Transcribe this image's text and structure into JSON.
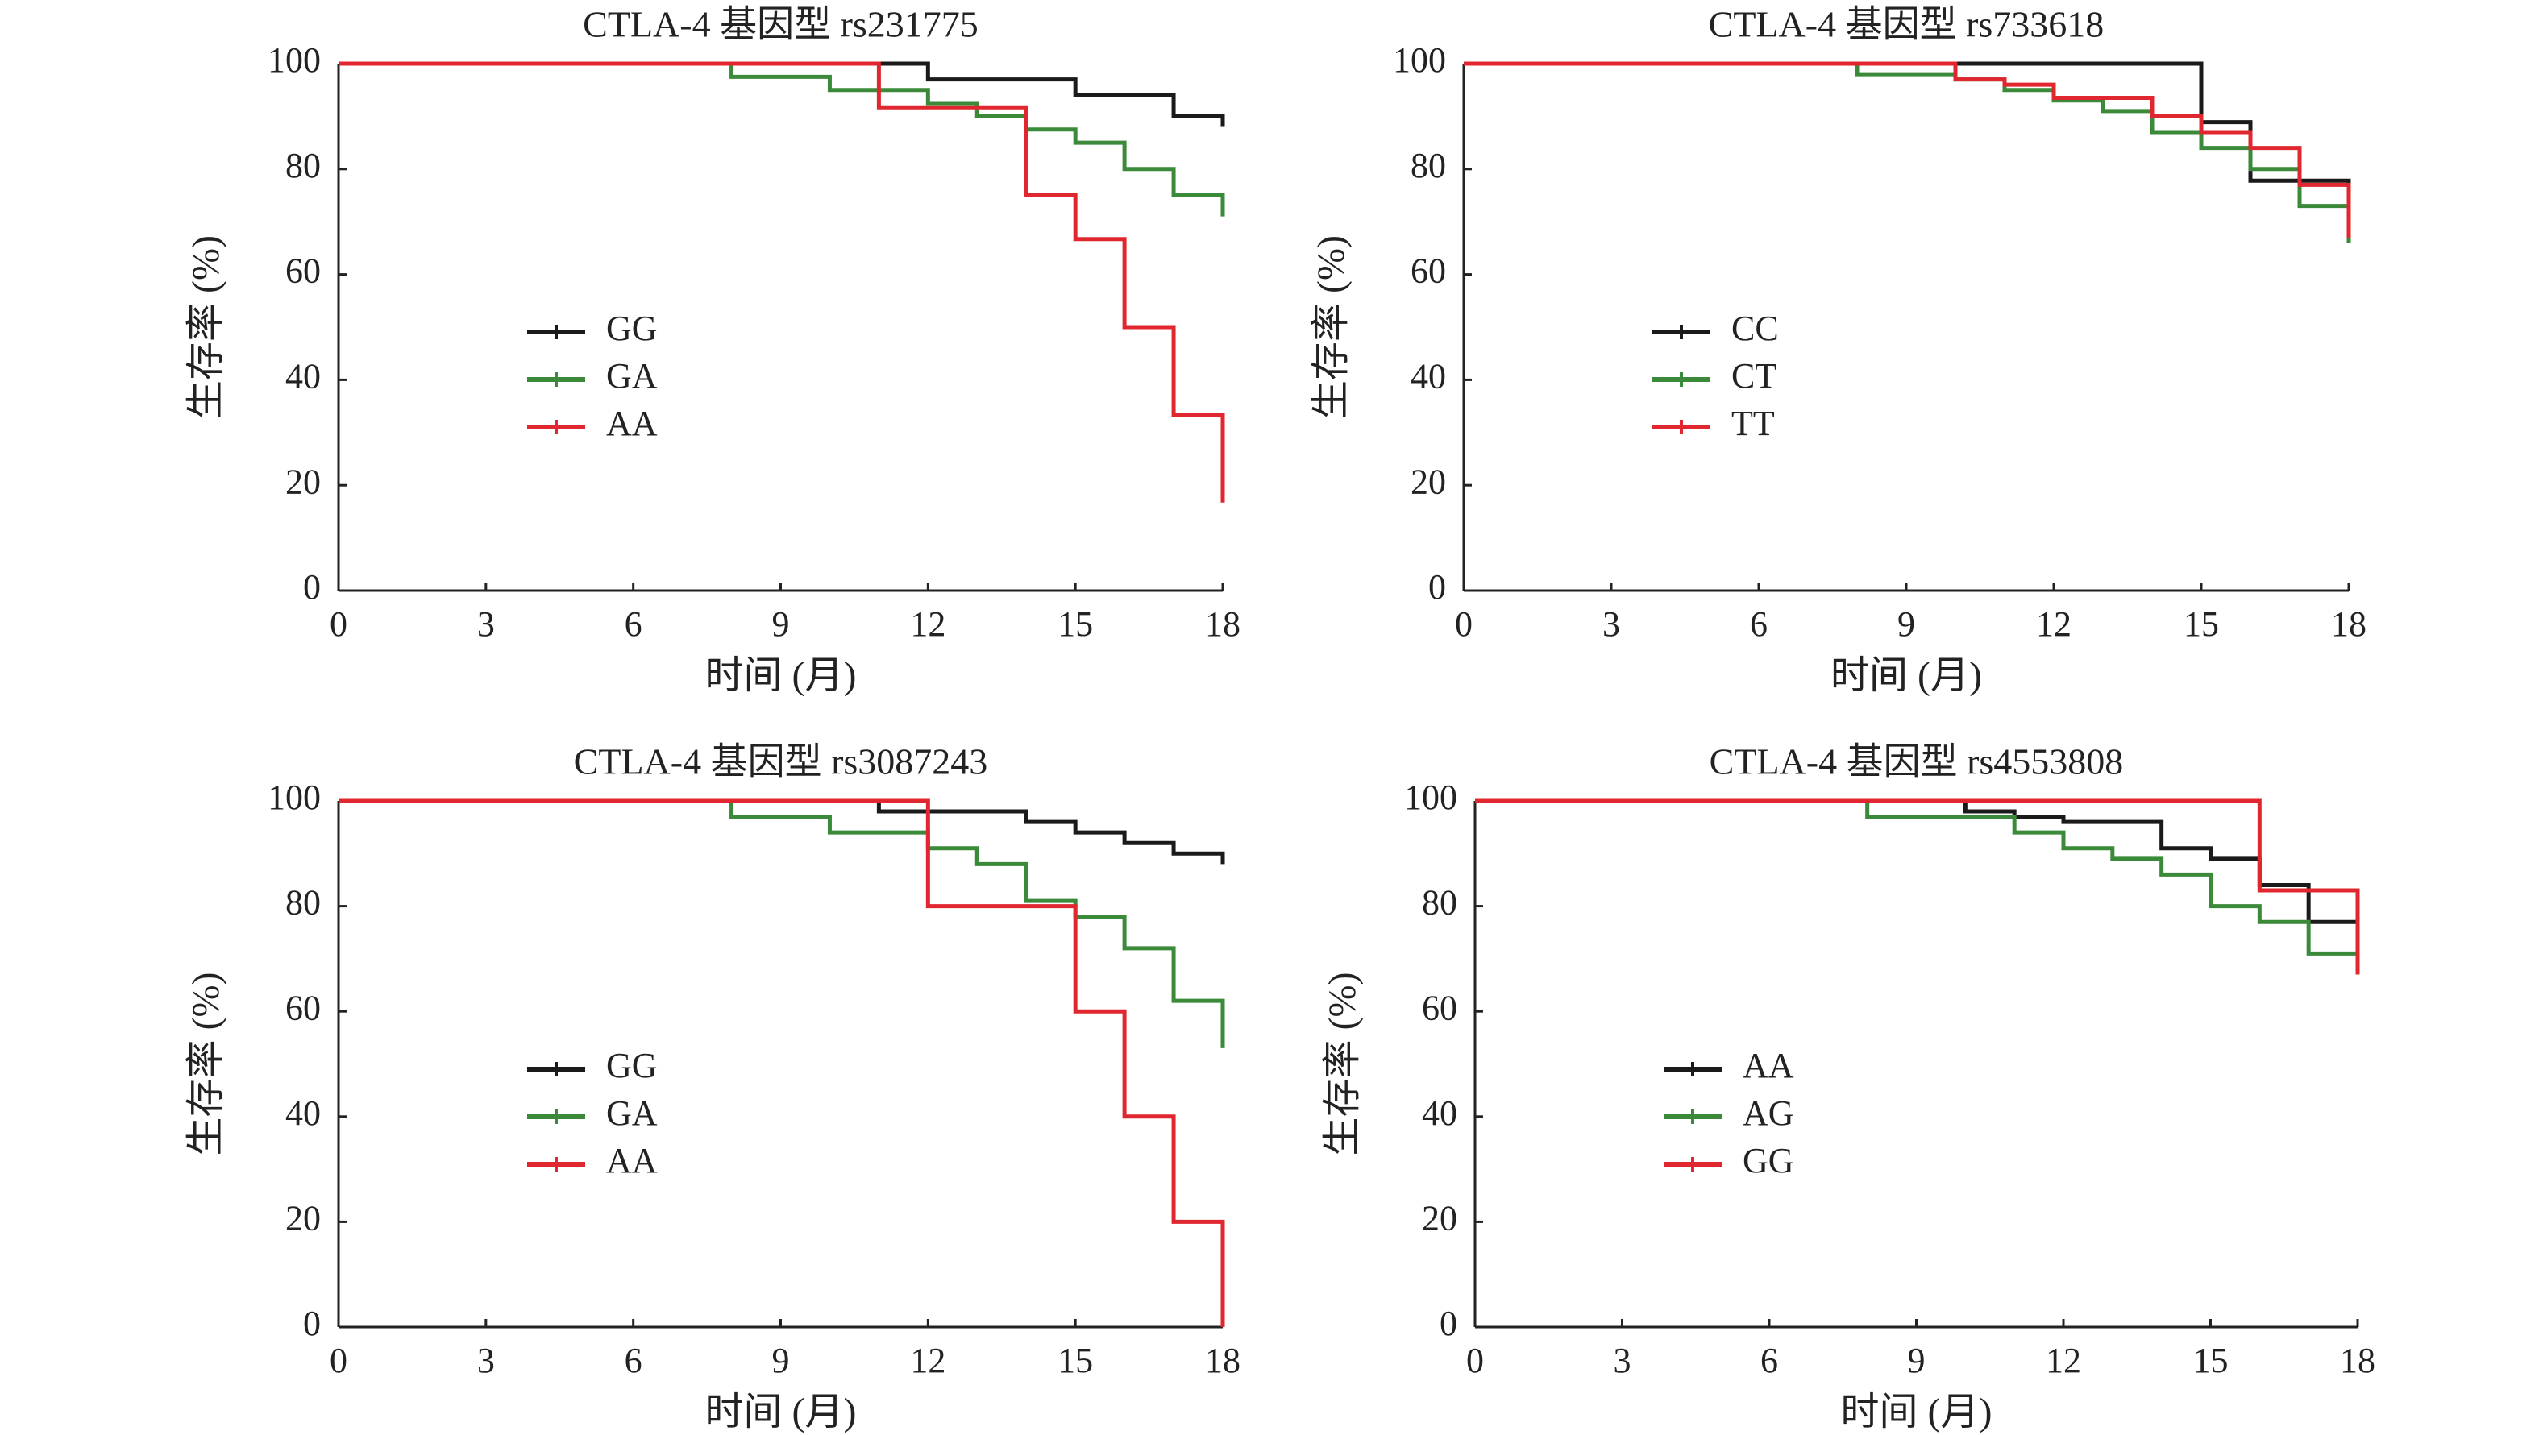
{
  "chart_data": [
    {
      "type": "step",
      "title": "CTLA-4 基因型 rs231775",
      "x_label": "时间 (月)",
      "y_label": "生存率 (%)",
      "xlim": [
        0,
        18
      ],
      "ylim": [
        0,
        100
      ],
      "xticks": [
        0,
        3,
        6,
        9,
        12,
        15,
        18
      ],
      "yticks": [
        0,
        20,
        40,
        60,
        80,
        100
      ],
      "series": [
        {
          "name": "GG",
          "color": "#1a1a1a",
          "x": [
            0,
            12,
            15,
            17,
            18
          ],
          "values": [
            100,
            97,
            94,
            90,
            88
          ]
        },
        {
          "name": "GA",
          "color": "#3a8a3a",
          "x": [
            0,
            8,
            10,
            12,
            13,
            14,
            15,
            16,
            17,
            18
          ],
          "values": [
            100,
            97.5,
            95,
            92.5,
            90,
            87.5,
            85,
            80,
            75,
            71
          ]
        },
        {
          "name": "AA",
          "color": "#e0262e",
          "x": [
            0,
            11,
            14,
            15,
            16,
            17,
            18
          ],
          "values": [
            100,
            91.7,
            75,
            66.7,
            50,
            33.3,
            16.7
          ]
        }
      ]
    },
    {
      "type": "step",
      "title": "CTLA-4 基因型 rs733618",
      "x_label": "时间 (月)",
      "y_label": "生存率 (%)",
      "xlim": [
        0,
        18
      ],
      "ylim": [
        0,
        100
      ],
      "xticks": [
        0,
        3,
        6,
        9,
        12,
        15,
        18
      ],
      "yticks": [
        0,
        20,
        40,
        60,
        80,
        100
      ],
      "series": [
        {
          "name": "CC",
          "color": "#1a1a1a",
          "x": [
            0,
            15,
            16,
            18
          ],
          "values": [
            100,
            88.9,
            77.8,
            66.7
          ]
        },
        {
          "name": "CT",
          "color": "#3a8a3a",
          "x": [
            0,
            8,
            10,
            11,
            12,
            13,
            14,
            15,
            16,
            17,
            18
          ],
          "values": [
            100,
            98,
            97,
            95,
            93,
            91,
            87,
            84,
            80,
            73,
            66
          ]
        },
        {
          "name": "TT",
          "color": "#e0262e",
          "x": [
            0,
            10,
            11,
            12,
            14,
            15,
            16,
            17,
            18
          ],
          "values": [
            100,
            97,
            96,
            93.5,
            90,
            87,
            84,
            77,
            67
          ]
        }
      ]
    },
    {
      "type": "step",
      "title": "CTLA-4 基因型 rs3087243",
      "x_label": "时间 (月)",
      "y_label": "生存率 (%)",
      "xlim": [
        0,
        18
      ],
      "ylim": [
        0,
        100
      ],
      "xticks": [
        0,
        3,
        6,
        9,
        12,
        15,
        18
      ],
      "yticks": [
        0,
        20,
        40,
        60,
        80,
        100
      ],
      "series": [
        {
          "name": "GG",
          "color": "#1a1a1a",
          "x": [
            0,
            11,
            14,
            15,
            16,
            17,
            18
          ],
          "values": [
            100,
            98,
            96,
            94,
            92,
            90,
            88
          ]
        },
        {
          "name": "GA",
          "color": "#3a8a3a",
          "x": [
            0,
            8,
            10,
            12,
            13,
            14,
            15,
            16,
            17,
            18
          ],
          "values": [
            100,
            97,
            94,
            91,
            88,
            81,
            78,
            72,
            62,
            53
          ]
        },
        {
          "name": "AA",
          "color": "#e0262e",
          "x": [
            0,
            12,
            15,
            16,
            17,
            18
          ],
          "values": [
            100,
            80,
            60,
            40,
            20,
            0
          ]
        }
      ]
    },
    {
      "type": "step",
      "title": "CTLA-4 基因型 rs4553808",
      "x_label": "时间 (月)",
      "y_label": "生存率 (%)",
      "xlim": [
        0,
        18
      ],
      "ylim": [
        0,
        100
      ],
      "xticks": [
        0,
        3,
        6,
        9,
        12,
        15,
        18
      ],
      "yticks": [
        0,
        20,
        40,
        60,
        80,
        100
      ],
      "series": [
        {
          "name": "AA",
          "color": "#1a1a1a",
          "x": [
            0,
            10,
            11,
            12,
            14,
            15,
            16,
            17,
            18
          ],
          "values": [
            100,
            98,
            97,
            96,
            91,
            89,
            84,
            77,
            70
          ]
        },
        {
          "name": "AG",
          "color": "#3a8a3a",
          "x": [
            0,
            8,
            11,
            12,
            13,
            14,
            15,
            16,
            17,
            18
          ],
          "values": [
            100,
            97,
            94,
            91,
            89,
            86,
            80,
            77,
            71,
            69
          ]
        },
        {
          "name": "GG",
          "color": "#e0262e",
          "x": [
            0,
            16,
            18
          ],
          "values": [
            100,
            83,
            67
          ]
        }
      ]
    }
  ]
}
